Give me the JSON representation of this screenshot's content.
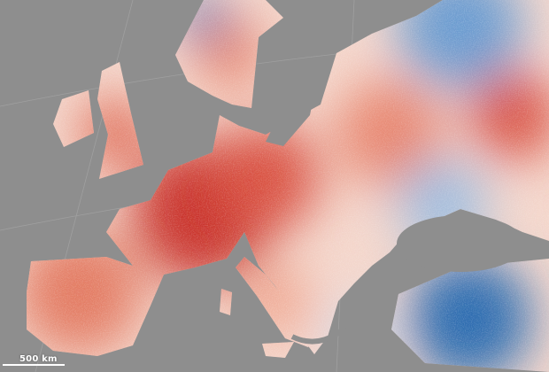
{
  "map": {
    "scale_label": "500 km",
    "colors": {
      "ocean": "#8e8e8e",
      "warm": "#c9302c",
      "neutral": "#f7f0ee",
      "cool": "#2b6cb0"
    }
  }
}
